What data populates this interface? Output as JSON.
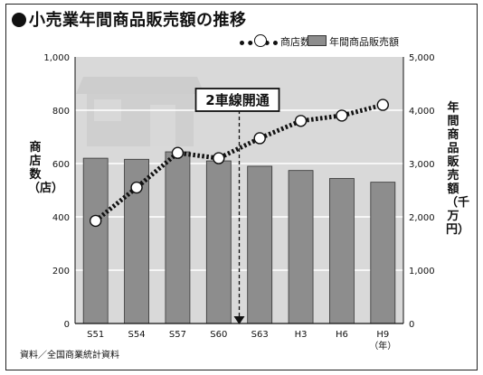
{
  "title": "小売業年間商品販売額の推移",
  "legend": {
    "line_label": "商店数",
    "bar_label": "年間商品販売額"
  },
  "source": "資料／全国商業統計資料",
  "annotation": {
    "text": "2車線開通",
    "at_category": "S63"
  },
  "chart_data": {
    "type": "bar",
    "title": "小売業年間商品販売額の推移",
    "categories": [
      "S51",
      "S54",
      "S57",
      "S60",
      "S63",
      "H3",
      "H6",
      "H9"
    ],
    "x_unit": "（年）",
    "left_axis": {
      "label": "商店数（店）",
      "ylim": [
        0,
        1000
      ],
      "ticks": [
        "0",
        "200",
        "400",
        "600",
        "800",
        "1,000"
      ]
    },
    "right_axis": {
      "label": "年間商品販売額（千万円）",
      "ylim": [
        0,
        5000
      ],
      "ticks": [
        "0",
        "1,000",
        "2,000",
        "3,000",
        "4,000",
        "5,000"
      ]
    },
    "series": [
      {
        "name": "年間商品販売額",
        "type": "bar",
        "axis": "right",
        "values": [
          3100,
          3080,
          3220,
          3050,
          2950,
          2870,
          2720,
          2650
        ]
      },
      {
        "name": "商店数",
        "type": "line",
        "axis": "left",
        "values": [
          385,
          510,
          640,
          620,
          695,
          760,
          780,
          820
        ]
      }
    ],
    "grid": true,
    "legend_position": "top-right",
    "colors": {
      "bar": "#8d8d8d",
      "plot_bg": "#d9d9d9",
      "line": "#111111"
    }
  }
}
